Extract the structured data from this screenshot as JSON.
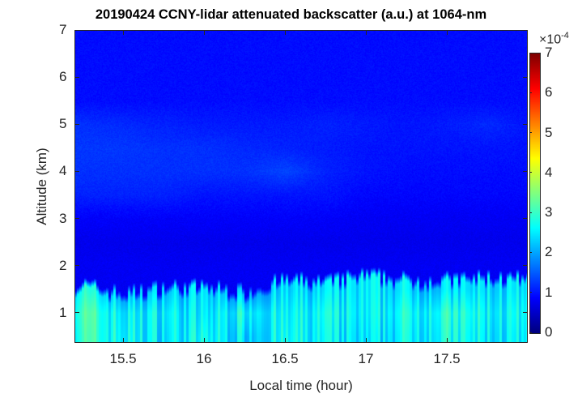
{
  "chart_data": {
    "type": "heatmap",
    "title": "20190424 CCNY-lidar attenuated backscatter (a.u.) at 1064-nm",
    "xlabel": "Local time (hour)",
    "ylabel": "Altitude (km)",
    "xlim": [
      15.2,
      18.0
    ],
    "ylim": [
      0.36,
      7
    ],
    "xticks": [
      "15.5",
      "16",
      "16.5",
      "17",
      "17.5"
    ],
    "xtick_values": [
      15.5,
      16,
      16.5,
      17,
      17.5
    ],
    "yticks": [
      "1",
      "2",
      "3",
      "4",
      "5",
      "6",
      "7"
    ],
    "ytick_values": [
      1,
      2,
      3,
      4,
      5,
      6,
      7
    ],
    "colormap": "jet",
    "colorbar": {
      "range": [
        0,
        7
      ],
      "ticks": [
        "0",
        "1",
        "2",
        "3",
        "4",
        "5",
        "6",
        "7"
      ],
      "multiplier_base": "×10",
      "multiplier_exponent": "-4"
    },
    "value_units": "×10^-4 a.u.",
    "times": [
      15.25,
      15.5,
      15.75,
      16.0,
      16.25,
      16.5,
      16.75,
      17.0,
      17.25,
      17.5,
      17.75,
      18.0
    ],
    "boundary_layer_top_km": [
      1.65,
      1.45,
      1.6,
      1.6,
      1.5,
      1.75,
      1.7,
      1.85,
      1.75,
      1.75,
      1.8,
      1.75
    ],
    "altitudes": [
      0.5,
      1.0,
      1.5,
      2.0,
      2.5,
      3.0,
      3.5,
      4.0,
      4.5,
      5.0,
      5.5,
      6.0,
      6.5,
      7.0
    ],
    "values": [
      [
        3.0,
        2.6,
        2.5,
        2.6,
        2.4,
        2.6,
        2.5,
        2.3,
        2.6,
        2.7,
        2.5,
        2.4
      ],
      [
        3.1,
        2.5,
        2.6,
        2.4,
        2.7,
        2.5,
        2.6,
        2.4,
        2.7,
        2.8,
        2.6,
        2.5
      ],
      [
        2.8,
        1.9,
        2.2,
        2.3,
        1.9,
        2.3,
        2.3,
        2.4,
        2.4,
        2.3,
        2.4,
        2.3
      ],
      [
        0.8,
        0.8,
        0.8,
        0.8,
        0.8,
        0.8,
        0.8,
        0.8,
        0.8,
        0.8,
        0.8,
        0.8
      ],
      [
        0.75,
        0.75,
        0.75,
        0.75,
        0.75,
        0.75,
        0.75,
        0.75,
        0.75,
        0.75,
        0.75,
        0.75
      ],
      [
        0.85,
        0.85,
        0.85,
        0.85,
        0.85,
        0.85,
        0.85,
        0.8,
        0.8,
        0.8,
        0.8,
        0.8
      ],
      [
        1.1,
        1.1,
        1.1,
        1.0,
        1.0,
        1.0,
        1.0,
        0.9,
        0.9,
        0.9,
        0.9,
        0.9
      ],
      [
        1.2,
        1.2,
        1.2,
        1.2,
        1.2,
        1.35,
        1.1,
        1.0,
        0.95,
        0.95,
        0.95,
        0.95
      ],
      [
        1.25,
        1.25,
        1.2,
        1.2,
        1.15,
        1.1,
        1.05,
        1.0,
        1.0,
        1.0,
        1.0,
        1.0
      ],
      [
        1.2,
        1.15,
        1.1,
        1.05,
        1.05,
        1.05,
        1.1,
        1.05,
        1.0,
        1.05,
        1.15,
        1.0
      ],
      [
        0.95,
        0.95,
        0.95,
        0.95,
        0.95,
        0.95,
        0.95,
        0.95,
        0.95,
        0.95,
        0.95,
        0.95
      ],
      [
        0.95,
        0.95,
        0.95,
        0.95,
        0.95,
        0.95,
        0.95,
        0.95,
        0.95,
        0.95,
        0.95,
        0.95
      ],
      [
        0.95,
        0.95,
        0.95,
        0.95,
        0.95,
        0.95,
        0.95,
        0.95,
        0.95,
        0.95,
        0.95,
        0.95
      ],
      [
        0.95,
        0.95,
        0.95,
        0.95,
        0.95,
        0.95,
        0.95,
        0.95,
        0.95,
        0.95,
        0.95,
        0.95
      ]
    ]
  }
}
